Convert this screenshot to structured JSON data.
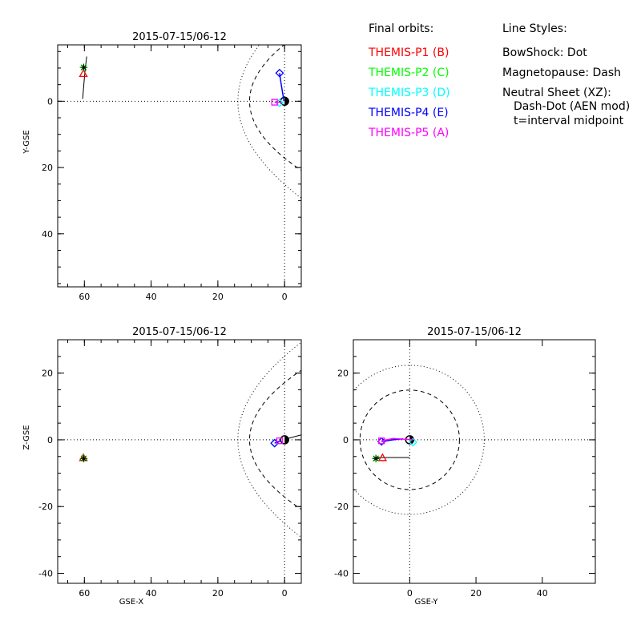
{
  "legend": {
    "orbits_title": "Final orbits:",
    "probes": [
      {
        "label": "THEMIS-P1 (B)",
        "color": "#ff0000"
      },
      {
        "label": "THEMIS-P2 (C)",
        "color": "#00ff00"
      },
      {
        "label": "THEMIS-P3 (D)",
        "color": "#00ffff"
      },
      {
        "label": "THEMIS-P4 (E)",
        "color": "#0000ff"
      },
      {
        "label": "THEMIS-P5 (A)",
        "color": "#ff00ff"
      }
    ],
    "styles_title": "Line Styles:",
    "styles": [
      "BowShock: Dot",
      "Magnetopause: Dash",
      "Neutral Sheet (XZ):",
      "Dash-Dot (AEN mod)",
      "t=interval midpoint"
    ]
  },
  "chart_data": [
    {
      "type": "scatter",
      "panel": "X-Y",
      "title": "2015-07-15/06-12",
      "xlabel": "",
      "ylabel": "Y-GSE",
      "xlim": [
        68,
        -5
      ],
      "ylim": [
        -17,
        56
      ],
      "x_ticks": [
        60,
        40,
        20,
        0
      ],
      "y_ticks": [
        0,
        20,
        40
      ],
      "y_tick_labels": [
        "0",
        "20",
        "40"
      ],
      "x_tick_labels": [
        "60",
        "40",
        "20",
        "0"
      ],
      "orbits": [
        {
          "probe": "THEMIS-P1",
          "color": "#ff0000",
          "points": [
            [
              60.3,
              -8.2
            ]
          ],
          "marker": "triangle"
        },
        {
          "probe": "THEMIS-P2",
          "color": "#00ff00",
          "points": [
            [
              60.2,
              -10.2
            ]
          ],
          "marker": "star"
        },
        {
          "probe": "THEMIS-P3",
          "color": "#00ffff",
          "points": [
            [
              1.5,
              0.5
            ]
          ],
          "marker": "diamond"
        },
        {
          "probe": "THEMIS-P4",
          "color": "#0000ff",
          "points": [
            [
              1.5,
              -8.5
            ],
            [
              1.0,
              -5.0
            ],
            [
              0.5,
              -2.0
            ],
            [
              0.2,
              0.0
            ]
          ],
          "marker": "diamond"
        },
        {
          "probe": "THEMIS-P5",
          "color": "#ff00ff",
          "points": [
            [
              3.0,
              0.3
            ],
            [
              1.0,
              0.3
            ]
          ],
          "marker": "square"
        }
      ],
      "black_track": [
        [
          59.3,
          -13.5
        ],
        [
          59.7,
          -10.2
        ],
        [
          60.0,
          -7.0
        ],
        [
          60.3,
          -3.5
        ],
        [
          60.5,
          -0.7
        ]
      ]
    },
    {
      "type": "scatter",
      "panel": "X-Z",
      "title": "2015-07-15/06-12",
      "xlabel": "GSE-X",
      "ylabel": "Z-GSE",
      "xlim": [
        68,
        -5
      ],
      "ylim": [
        -43,
        30
      ],
      "x_ticks": [
        60,
        40,
        20,
        0
      ],
      "y_ticks": [
        20,
        0,
        -20,
        -40
      ],
      "y_tick_labels": [
        "20",
        "0",
        "-20",
        "-40"
      ],
      "x_tick_labels": [
        "60",
        "40",
        "20",
        "0"
      ],
      "orbits": [
        {
          "probe": "THEMIS-P1",
          "color": "#ff0000",
          "points": [
            [
              60.3,
              -5.5
            ]
          ],
          "marker": "triangle"
        },
        {
          "probe": "THEMIS-P2",
          "color": "#00ff00",
          "points": [
            [
              60.2,
              -5.6
            ]
          ],
          "marker": "star"
        },
        {
          "probe": "THEMIS-P3",
          "color": "#00ffff",
          "points": [
            [
              3.0,
              -1.0
            ]
          ],
          "marker": "diamond"
        },
        {
          "probe": "THEMIS-P4",
          "color": "#0000ff",
          "points": [
            [
              3.0,
              -1.0
            ],
            [
              1.0,
              -0.2
            ]
          ],
          "marker": "diamond"
        },
        {
          "probe": "THEMIS-P5",
          "color": "#ff00ff",
          "points": [
            [
              1.5,
              -0.3
            ]
          ],
          "marker": "square"
        }
      ],
      "black_track": [
        [
          0.5,
          0.0
        ],
        [
          -5,
          1.5
        ]
      ]
    },
    {
      "type": "scatter",
      "panel": "Y-Z",
      "title": "2015-07-15/06-12",
      "xlabel": "GSE-Y",
      "ylabel": "",
      "xlim": [
        -17,
        56
      ],
      "ylim": [
        -43,
        30
      ],
      "x_ticks": [
        0,
        20,
        40
      ],
      "y_ticks": [
        20,
        0,
        -20,
        -40
      ],
      "y_tick_labels": [
        "20",
        "0",
        "-20",
        "-40"
      ],
      "x_tick_labels": [
        "0",
        "20",
        "40"
      ],
      "orbits": [
        {
          "probe": "THEMIS-P1",
          "color": "#ff0000",
          "points": [
            [
              -8.2,
              -5.5
            ]
          ],
          "marker": "triangle"
        },
        {
          "probe": "THEMIS-P2",
          "color": "#00ff00",
          "points": [
            [
              -10.2,
              -5.6
            ]
          ],
          "marker": "star"
        },
        {
          "probe": "THEMIS-P3",
          "color": "#00ffff",
          "points": [
            [
              1.0,
              -0.7
            ]
          ],
          "marker": "diamond"
        },
        {
          "probe": "THEMIS-P4",
          "color": "#0000ff",
          "points": [
            [
              -8.5,
              -0.5
            ],
            [
              -5.0,
              0.0
            ],
            [
              -2.0,
              0.3
            ]
          ],
          "marker": "diamond"
        },
        {
          "probe": "THEMIS-P5",
          "color": "#ff00ff",
          "points": [
            [
              -8.5,
              -0.3
            ],
            [
              -5,
              0.4
            ],
            [
              1.0,
              0.0
            ]
          ],
          "marker": "square"
        }
      ],
      "black_track": [
        [
          -10.2,
          -5.3
        ],
        [
          0.0,
          -5.3
        ]
      ]
    }
  ]
}
